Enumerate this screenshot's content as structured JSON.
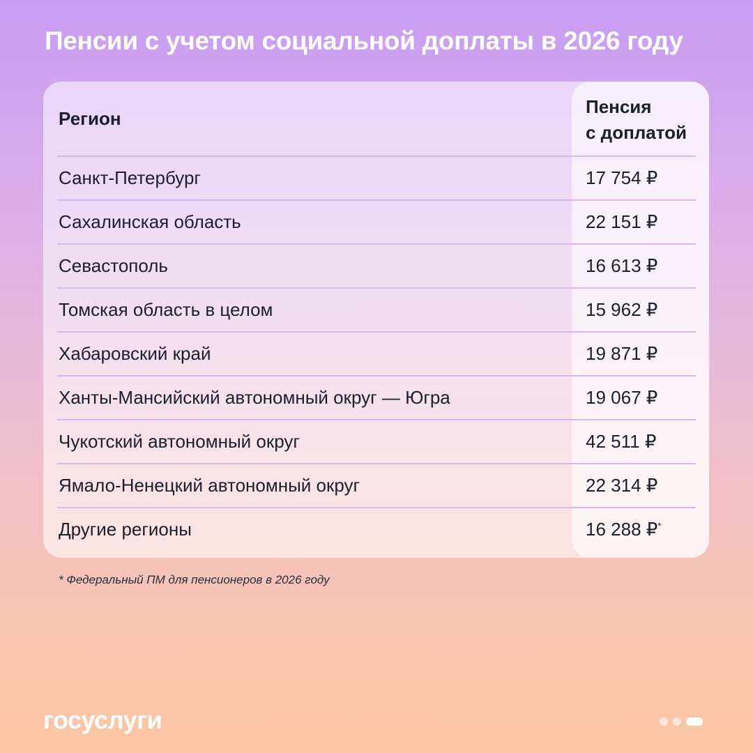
{
  "title": "Пенсии с учетом социальной доплаты в 2026 году",
  "table": {
    "headers": {
      "region": "Регион",
      "value_line1": "Пенсия",
      "value_line2": "с доплатой"
    },
    "rows": [
      {
        "region": "Санкт-Петербург",
        "value": "17 754 ₽"
      },
      {
        "region": "Сахалинская область",
        "value": "22 151 ₽"
      },
      {
        "region": "Севастополь",
        "value": "16 613 ₽"
      },
      {
        "region": "Томская область в целом",
        "value": "15 962 ₽"
      },
      {
        "region": "Хабаровский край",
        "value": "19 871 ₽"
      },
      {
        "region": "Ханты-Мансийский автономный округ — Югра",
        "value": "19 067 ₽"
      },
      {
        "region": "Чукотский автономный округ",
        "value": "42 511 ₽"
      },
      {
        "region": "Ямало-Ненецкий автономный округ",
        "value": "22 314 ₽"
      },
      {
        "region": "Другие регионы",
        "value": "16 288 ₽",
        "mark": "*"
      }
    ]
  },
  "footnote": "* Федеральный ПМ для пенсионеров в 2026 году",
  "logo": "госуслуги",
  "pagination": {
    "total": 3,
    "active": 3
  }
}
